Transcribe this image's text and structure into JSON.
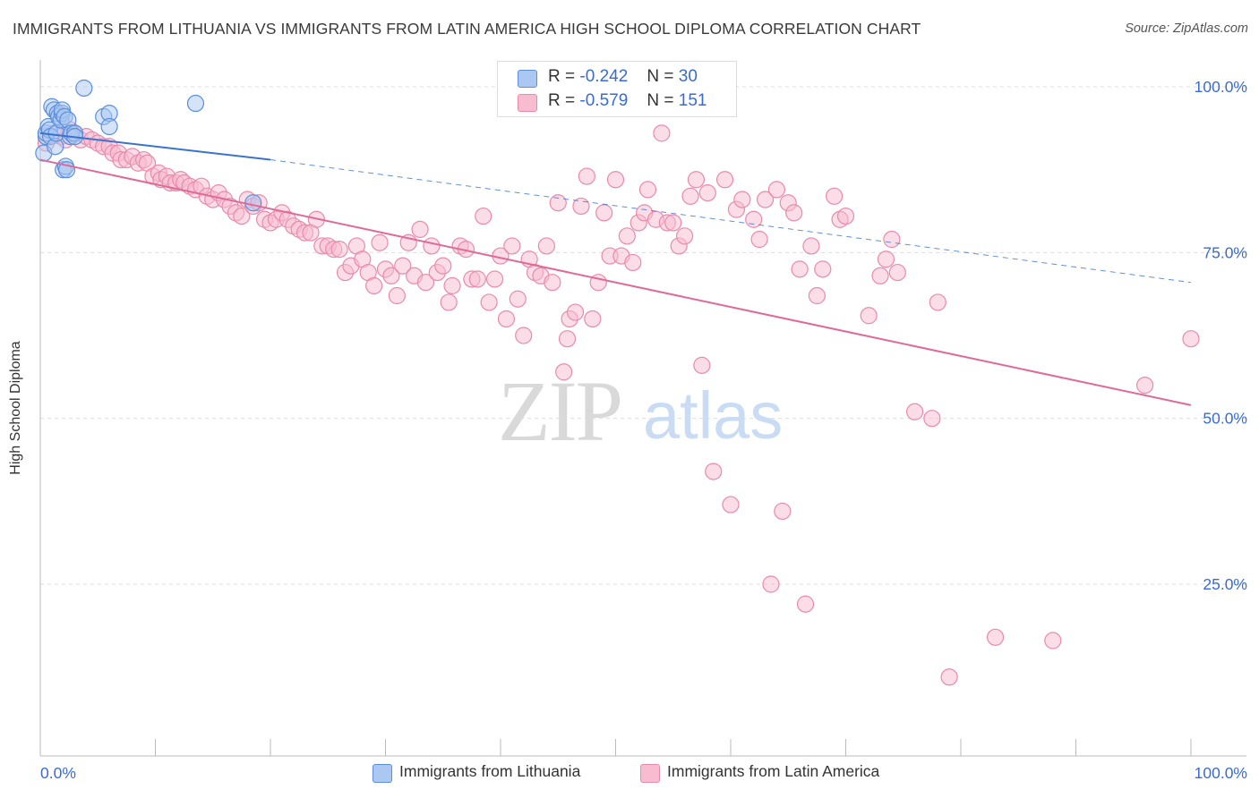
{
  "title": "IMMIGRANTS FROM LITHUANIA VS IMMIGRANTS FROM LATIN AMERICA HIGH SCHOOL DIPLOMA CORRELATION CHART",
  "source": "Source: ZipAtlas.com",
  "watermark": {
    "zip": "ZIP",
    "atlas": "atlas"
  },
  "legend": {
    "rows": [
      {
        "r_label": "R =",
        "r_value": "-0.242",
        "n_label": "N =",
        "n_value": "30"
      },
      {
        "r_label": "R =",
        "r_value": "-0.579",
        "n_label": "N =",
        "n_value": "151"
      }
    ]
  },
  "bottom_legend": [
    "Immigrants from Lithuania",
    "Immigrants from Latin America"
  ],
  "colors": {
    "lithuania_fill": "#aac8f2",
    "lithuania_stroke": "#5b8fdc",
    "lithuania_line": "#3a73cf",
    "latam_fill": "#f7bcd0",
    "latam_stroke": "#ea8aab",
    "latam_line": "#e06a97",
    "tick_label": "#3a6bd1",
    "grid": "#dddddd"
  },
  "chart_data": {
    "type": "scatter",
    "title": "IMMIGRANTS FROM LITHUANIA VS IMMIGRANTS FROM LATIN AMERICA HIGH SCHOOL DIPLOMA CORRELATION CHART",
    "xlabel": "",
    "ylabel": "High School Diploma",
    "xlim": [
      0,
      100
    ],
    "ylim": [
      0,
      105
    ],
    "x_tick_labels": [
      "0.0%",
      "100.0%"
    ],
    "y_tick_labels": [
      "100.0%",
      "75.0%",
      "50.0%",
      "25.0%"
    ],
    "y_tick_values": [
      100,
      75,
      50,
      25
    ],
    "grid": true,
    "legend_position": "top-center",
    "series": [
      {
        "name": "Immigrants from Lithuania",
        "r": -0.242,
        "n": 30,
        "trend": {
          "x0": 0,
          "y0": 93.0,
          "x1": 20,
          "y1": 89.0,
          "dashed_to_x": 100,
          "dashed_to_y": 70.5
        },
        "points": [
          [
            0.3,
            90.0
          ],
          [
            0.5,
            92.5
          ],
          [
            0.5,
            93.0
          ],
          [
            0.7,
            94.0
          ],
          [
            0.8,
            93.5
          ],
          [
            0.9,
            92.5
          ],
          [
            1.0,
            97.0
          ],
          [
            1.2,
            96.5
          ],
          [
            1.3,
            91.0
          ],
          [
            1.4,
            93.0
          ],
          [
            1.5,
            96.0
          ],
          [
            1.6,
            95.5
          ],
          [
            1.8,
            95.0
          ],
          [
            1.9,
            96.0
          ],
          [
            1.9,
            96.5
          ],
          [
            2.0,
            87.5
          ],
          [
            2.1,
            95.5
          ],
          [
            2.2,
            88.0
          ],
          [
            2.3,
            87.5
          ],
          [
            2.4,
            95.0
          ],
          [
            2.6,
            92.5
          ],
          [
            2.7,
            93.0
          ],
          [
            3.0,
            93.0
          ],
          [
            3.8,
            99.8
          ],
          [
            3.0,
            92.5
          ],
          [
            5.5,
            95.5
          ],
          [
            6.0,
            96.0
          ],
          [
            6.0,
            94.0
          ],
          [
            13.5,
            97.5
          ],
          [
            18.5,
            82.5
          ]
        ]
      },
      {
        "name": "Immigrants from Latin America",
        "r": -0.579,
        "n": 151,
        "trend": {
          "x0": 0,
          "y0": 89.0,
          "x1": 100,
          "y1": 52.0
        },
        "points": [
          [
            0.5,
            91.5
          ],
          [
            1.2,
            93.0
          ],
          [
            1.8,
            92.5
          ],
          [
            2.2,
            92.0
          ],
          [
            2.6,
            93.5
          ],
          [
            3.0,
            93.0
          ],
          [
            3.5,
            92.0
          ],
          [
            4.0,
            92.5
          ],
          [
            4.5,
            92.0
          ],
          [
            5.0,
            91.5
          ],
          [
            5.5,
            91.0
          ],
          [
            6.0,
            91.0
          ],
          [
            6.3,
            90.0
          ],
          [
            6.8,
            90.0
          ],
          [
            7.0,
            89.0
          ],
          [
            7.5,
            89.0
          ],
          [
            8.0,
            89.5
          ],
          [
            8.5,
            88.5
          ],
          [
            9.0,
            89.0
          ],
          [
            9.3,
            88.5
          ],
          [
            9.8,
            86.5
          ],
          [
            10.3,
            87.0
          ],
          [
            10.5,
            86.0
          ],
          [
            11.0,
            86.5
          ],
          [
            11.3,
            85.5
          ],
          [
            11.8,
            85.5
          ],
          [
            12.2,
            86.0
          ],
          [
            12.5,
            85.5
          ],
          [
            13.0,
            85.0
          ],
          [
            13.5,
            84.5
          ],
          [
            14.0,
            85.0
          ],
          [
            14.5,
            83.5
          ],
          [
            15.0,
            83.0
          ],
          [
            15.5,
            84.0
          ],
          [
            16.0,
            83.0
          ],
          [
            16.5,
            82.0
          ],
          [
            17.0,
            81.0
          ],
          [
            17.5,
            80.5
          ],
          [
            18.0,
            83.0
          ],
          [
            18.5,
            82.0
          ],
          [
            19.0,
            82.5
          ],
          [
            19.5,
            80.0
          ],
          [
            20.0,
            79.5
          ],
          [
            20.5,
            80.0
          ],
          [
            21.0,
            81.0
          ],
          [
            21.5,
            80.0
          ],
          [
            22.0,
            79.0
          ],
          [
            22.5,
            78.5
          ],
          [
            23.0,
            78.0
          ],
          [
            23.5,
            78.0
          ],
          [
            24.0,
            80.0
          ],
          [
            24.5,
            76.0
          ],
          [
            25.0,
            76.0
          ],
          [
            25.5,
            75.5
          ],
          [
            26.0,
            75.5
          ],
          [
            26.5,
            72.0
          ],
          [
            27.0,
            73.0
          ],
          [
            27.5,
            76.0
          ],
          [
            28.0,
            74.0
          ],
          [
            28.5,
            72.0
          ],
          [
            29.0,
            70.0
          ],
          [
            29.5,
            76.5
          ],
          [
            30.0,
            72.5
          ],
          [
            30.5,
            71.5
          ],
          [
            31.0,
            68.5
          ],
          [
            31.5,
            73.0
          ],
          [
            32.0,
            76.5
          ],
          [
            32.5,
            71.5
          ],
          [
            33.0,
            78.5
          ],
          [
            33.5,
            70.5
          ],
          [
            34.0,
            76.0
          ],
          [
            34.5,
            72.0
          ],
          [
            35.0,
            73.0
          ],
          [
            35.5,
            67.5
          ],
          [
            35.8,
            70.0
          ],
          [
            36.5,
            76.0
          ],
          [
            37.0,
            75.5
          ],
          [
            37.5,
            71.0
          ],
          [
            38.0,
            71.0
          ],
          [
            38.5,
            80.5
          ],
          [
            39.0,
            67.5
          ],
          [
            39.5,
            71.0
          ],
          [
            40.0,
            74.5
          ],
          [
            40.5,
            65.0
          ],
          [
            41.0,
            76.0
          ],
          [
            41.5,
            68.0
          ],
          [
            42.0,
            62.5
          ],
          [
            42.5,
            74.0
          ],
          [
            43.0,
            72.0
          ],
          [
            43.5,
            71.5
          ],
          [
            44.0,
            76.0
          ],
          [
            44.5,
            70.5
          ],
          [
            45.0,
            82.5
          ],
          [
            45.5,
            57.0
          ],
          [
            45.8,
            62.0
          ],
          [
            46.0,
            65.0
          ],
          [
            46.5,
            66.0
          ],
          [
            47.0,
            82.0
          ],
          [
            47.5,
            86.5
          ],
          [
            48.0,
            65.0
          ],
          [
            48.5,
            70.5
          ],
          [
            49.0,
            81.0
          ],
          [
            49.5,
            74.5
          ],
          [
            50.0,
            86.0
          ],
          [
            50.5,
            74.5
          ],
          [
            51.0,
            77.5
          ],
          [
            51.5,
            73.5
          ],
          [
            52.0,
            79.5
          ],
          [
            52.5,
            81.0
          ],
          [
            52.8,
            84.5
          ],
          [
            53.5,
            80.0
          ],
          [
            54.0,
            93.0
          ],
          [
            54.5,
            79.5
          ],
          [
            55.0,
            79.5
          ],
          [
            55.5,
            76.0
          ],
          [
            56.0,
            77.5
          ],
          [
            56.5,
            83.5
          ],
          [
            57.0,
            86.0
          ],
          [
            57.5,
            58.0
          ],
          [
            58.0,
            84.0
          ],
          [
            58.5,
            42.0
          ],
          [
            59.5,
            86.0
          ],
          [
            60.0,
            37.0
          ],
          [
            60.5,
            81.5
          ],
          [
            61.0,
            83.0
          ],
          [
            62.0,
            80.0
          ],
          [
            62.5,
            77.0
          ],
          [
            63.0,
            83.0
          ],
          [
            63.5,
            25.0
          ],
          [
            64.0,
            84.5
          ],
          [
            64.5,
            36.0
          ],
          [
            65.0,
            82.5
          ],
          [
            65.5,
            81.0
          ],
          [
            66.0,
            72.5
          ],
          [
            66.5,
            22.0
          ],
          [
            67.0,
            76.0
          ],
          [
            67.5,
            68.5
          ],
          [
            68.0,
            72.5
          ],
          [
            69.0,
            83.5
          ],
          [
            69.5,
            80.0
          ],
          [
            70.0,
            80.5
          ],
          [
            72.0,
            65.5
          ],
          [
            73.0,
            71.5
          ],
          [
            73.5,
            74.0
          ],
          [
            74.0,
            77.0
          ],
          [
            74.5,
            72.0
          ],
          [
            76.0,
            51.0
          ],
          [
            77.5,
            50.0
          ],
          [
            78.0,
            67.5
          ],
          [
            79.0,
            11.0
          ],
          [
            83.0,
            17.0
          ],
          [
            88.0,
            16.5
          ],
          [
            96.0,
            55.0
          ],
          [
            100.0,
            62.0
          ]
        ]
      }
    ]
  }
}
